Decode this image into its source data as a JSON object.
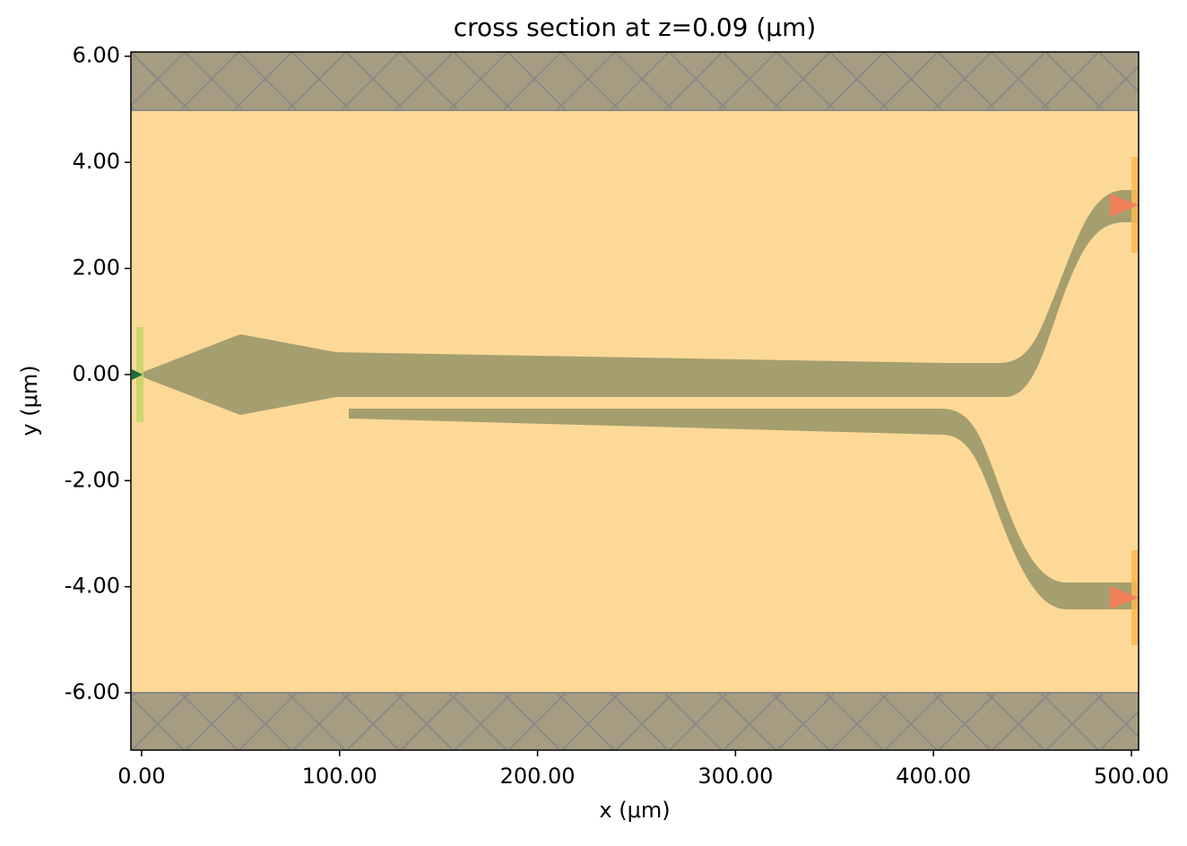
{
  "chart_data": {
    "type": "structure",
    "title": "cross section at z=0.09 (μm)",
    "x_label": "x (μm)",
    "y_label": "y (μm)",
    "xlim": [
      -5.4,
      503.6
    ],
    "ylim": [
      -7.08,
      6.08
    ],
    "xticks": [
      {
        "value": 0,
        "label": "0.00"
      },
      {
        "value": 100,
        "label": "100.00"
      },
      {
        "value": 200,
        "label": "200.00"
      },
      {
        "value": 300,
        "label": "300.00"
      },
      {
        "value": 400,
        "label": "400.00"
      },
      {
        "value": 500,
        "label": "500.00"
      }
    ],
    "yticks": [
      {
        "value": -6,
        "label": "-6.00"
      },
      {
        "value": -4,
        "label": "-4.00"
      },
      {
        "value": -2,
        "label": "-2.00"
      },
      {
        "value": 0,
        "label": "0.00"
      },
      {
        "value": 2,
        "label": "2.00"
      },
      {
        "value": 4,
        "label": "4.00"
      },
      {
        "value": 6,
        "label": "6.00"
      }
    ]
  }
}
